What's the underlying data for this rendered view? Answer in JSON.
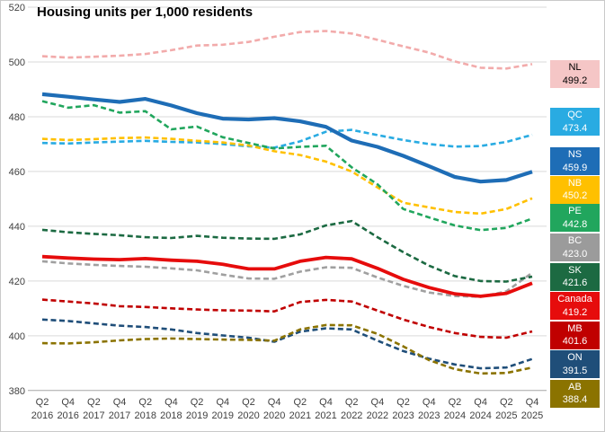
{
  "title": "Housing units per 1,000 residents",
  "chart_data": {
    "type": "line",
    "title": "Housing units per 1,000 residents",
    "ylim": [
      380,
      520
    ],
    "y_ticks": [
      520,
      500,
      480,
      460,
      440,
      420,
      400,
      380
    ],
    "grid": "horizontal",
    "legend_position": "right",
    "x_tick_labels": [
      [
        "Q2",
        "2016"
      ],
      [
        "Q4",
        "2016"
      ],
      [
        "Q2",
        "2017"
      ],
      [
        "Q4",
        "2017"
      ],
      [
        "Q2",
        "2018"
      ],
      [
        "Q4",
        "2018"
      ],
      [
        "Q2",
        "2019"
      ],
      [
        "Q4",
        "2019"
      ],
      [
        "Q2",
        "2020"
      ],
      [
        "Q4",
        "2020"
      ],
      [
        "Q2",
        "2021"
      ],
      [
        "Q4",
        "2021"
      ],
      [
        "Q2",
        "2022"
      ],
      [
        "Q4",
        "2022"
      ],
      [
        "Q2",
        "2023"
      ],
      [
        "Q4",
        "2023"
      ],
      [
        "Q2",
        "2024"
      ],
      [
        "Q4",
        "2024"
      ],
      [
        "Q2",
        "2025"
      ],
      [
        "Q4",
        "2025"
      ]
    ],
    "series": [
      {
        "name": "NL",
        "end_value": "499.2",
        "line_style": "dashed",
        "line_color": "#F2ABAB",
        "legend_bg": "#F5C6C6",
        "legend_fg": "#000000",
        "values": [
          502.1,
          501.6,
          501.9,
          502.3,
          502.9,
          504.3,
          506.0,
          506.3,
          507.3,
          509.2,
          510.9,
          511.3,
          510.4,
          508.1,
          505.7,
          503.4,
          500.2,
          497.9,
          497.6,
          499.2
        ]
      },
      {
        "name": "QC",
        "end_value": "473.4",
        "line_style": "dashed",
        "line_color": "#29ABE2",
        "legend_bg": "#29ABE2",
        "legend_fg": "#ffffff",
        "values": [
          470.4,
          470.2,
          470.6,
          470.9,
          471.2,
          470.8,
          470.6,
          470.0,
          469.2,
          468.7,
          471.0,
          474.5,
          475.2,
          473.3,
          471.5,
          470.0,
          469.1,
          469.3,
          470.8,
          473.4
        ]
      },
      {
        "name": "NS",
        "end_value": "459.9",
        "line_style": "solid",
        "line_color": "#1E6DB6",
        "legend_bg": "#1E6DB6",
        "legend_fg": "#ffffff",
        "values": [
          488.2,
          487.3,
          486.3,
          485.4,
          486.5,
          484.1,
          481.3,
          479.3,
          479.0,
          479.5,
          478.3,
          476.3,
          471.3,
          469.0,
          465.7,
          461.9,
          458.0,
          456.3,
          456.9,
          459.9
        ]
      },
      {
        "name": "NB",
        "end_value": "450.2",
        "line_style": "dashed",
        "line_color": "#FFC000",
        "legend_bg": "#FFC000",
        "legend_fg": "#ffffff",
        "values": [
          471.9,
          471.5,
          471.8,
          472.2,
          472.4,
          471.9,
          471.2,
          470.6,
          469.5,
          467.4,
          466.0,
          463.6,
          460.0,
          454.2,
          448.6,
          446.9,
          445.2,
          444.6,
          446.3,
          450.2
        ]
      },
      {
        "name": "PE",
        "end_value": "442.8",
        "line_style": "dashed",
        "line_color": "#21A65D",
        "legend_bg": "#21A65D",
        "legend_fg": "#ffffff",
        "values": [
          485.7,
          483.3,
          484.2,
          481.5,
          482.0,
          475.4,
          476.4,
          472.5,
          470.4,
          468.4,
          469.0,
          469.4,
          461.5,
          455.3,
          446.3,
          443.2,
          440.3,
          438.6,
          439.4,
          442.8
        ]
      },
      {
        "name": "BC",
        "end_value": "423.0",
        "line_style": "dashed",
        "line_color": "#A0A0A0",
        "legend_bg": "#9B9B9B",
        "legend_fg": "#ffffff",
        "values": [
          427.2,
          426.4,
          425.9,
          425.5,
          425.2,
          424.6,
          423.9,
          422.3,
          420.9,
          420.8,
          423.4,
          425.0,
          424.8,
          421.3,
          418.2,
          415.8,
          414.5,
          414.2,
          416.2,
          423.0
        ]
      },
      {
        "name": "SK",
        "end_value": "421.6",
        "line_style": "dashed",
        "line_color": "#1C6A42",
        "legend_bg": "#1C6A42",
        "legend_fg": "#ffffff",
        "values": [
          438.7,
          437.8,
          437.2,
          436.7,
          436.0,
          435.7,
          436.5,
          435.8,
          435.5,
          435.4,
          437.0,
          440.3,
          441.9,
          436.0,
          430.5,
          425.6,
          421.8,
          420.0,
          419.8,
          421.6
        ]
      },
      {
        "name": "Canada",
        "end_value": "419.2",
        "line_style": "solid",
        "line_color": "#E60C0C",
        "legend_bg": "#E60C0C",
        "legend_fg": "#ffffff",
        "values": [
          428.9,
          428.4,
          428.0,
          427.8,
          428.2,
          427.6,
          427.2,
          426.1,
          424.4,
          424.4,
          427.2,
          428.6,
          428.1,
          424.6,
          420.6,
          417.6,
          415.3,
          414.4,
          415.5,
          419.2
        ]
      },
      {
        "name": "MB",
        "end_value": "401.6",
        "line_style": "dashed",
        "line_color": "#C00000",
        "legend_bg": "#C00000",
        "legend_fg": "#ffffff",
        "values": [
          413.2,
          412.5,
          411.8,
          410.8,
          410.5,
          410.0,
          409.6,
          409.3,
          409.2,
          408.9,
          412.3,
          413.1,
          412.5,
          409.2,
          405.9,
          403.2,
          401.0,
          399.6,
          399.3,
          401.6
        ]
      },
      {
        "name": "ON",
        "end_value": "391.5",
        "line_style": "dashed",
        "line_color": "#1F4E79",
        "legend_bg": "#1F4E79",
        "legend_fg": "#ffffff",
        "values": [
          405.9,
          405.4,
          404.5,
          403.7,
          403.2,
          402.3,
          401.0,
          400.1,
          399.3,
          397.8,
          401.5,
          402.7,
          402.3,
          398.2,
          394.4,
          391.6,
          389.5,
          388.1,
          388.4,
          391.5
        ]
      },
      {
        "name": "AB",
        "end_value": "388.4",
        "line_style": "dashed",
        "line_color": "#8B7300",
        "legend_bg": "#8B7300",
        "legend_fg": "#ffffff",
        "values": [
          397.3,
          397.2,
          397.6,
          398.3,
          398.8,
          399.0,
          398.8,
          398.6,
          398.5,
          398.2,
          402.3,
          403.9,
          403.8,
          400.7,
          396.1,
          391.1,
          387.8,
          386.2,
          386.4,
          388.4
        ]
      }
    ]
  }
}
